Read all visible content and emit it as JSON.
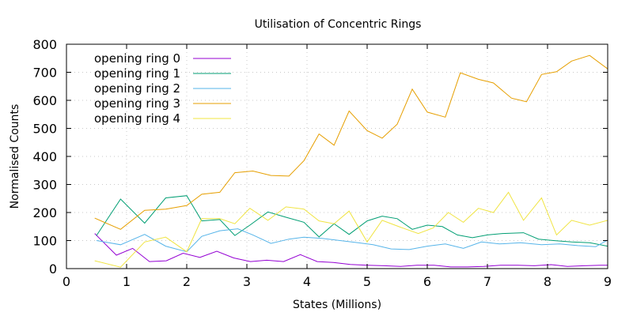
{
  "chart_data": {
    "type": "line",
    "title": "Utilisation of Concentric Rings",
    "xlabel": "States (Millions)",
    "ylabel": "Normalised Counts",
    "xlim": [
      0,
      9
    ],
    "ylim": [
      0,
      800
    ],
    "xticks": [
      0,
      1,
      2,
      3,
      4,
      5,
      6,
      7,
      8,
      9
    ],
    "yticks": [
      0,
      100,
      200,
      300,
      400,
      500,
      600,
      700,
      800
    ],
    "grid": true,
    "legend_position": "top-left",
    "series": [
      {
        "name": "opening ring 0",
        "color": "#9400d3",
        "x": [
          0.47,
          0.83,
          1.1,
          1.38,
          1.66,
          1.94,
          2.22,
          2.5,
          2.78,
          3.06,
          3.33,
          3.61,
          3.89,
          4.17,
          4.44,
          4.72,
          5.0,
          5.28,
          5.56,
          5.83,
          6.11,
          6.39,
          6.67,
          6.94,
          7.22,
          7.5,
          7.78,
          8.06,
          8.33,
          8.61,
          8.89,
          9.0
        ],
        "y": [
          125,
          48,
          72,
          25,
          28,
          55,
          40,
          62,
          38,
          25,
          30,
          25,
          50,
          25,
          22,
          15,
          12,
          10,
          8,
          12,
          12,
          6,
          6,
          8,
          12,
          12,
          10,
          14,
          8,
          10,
          12,
          12
        ]
      },
      {
        "name": "opening ring 1",
        "color": "#009e73",
        "x": [
          0.5,
          0.9,
          1.3,
          1.65,
          2.0,
          2.25,
          2.55,
          2.8,
          3.05,
          3.35,
          3.65,
          3.95,
          4.2,
          4.45,
          4.7,
          5.0,
          5.25,
          5.5,
          5.75,
          6.0,
          6.25,
          6.5,
          6.75,
          7.0,
          7.25,
          7.6,
          7.85,
          8.1,
          8.4,
          8.7,
          9.0
        ],
        "y": [
          118,
          248,
          162,
          252,
          260,
          170,
          175,
          118,
          155,
          202,
          183,
          165,
          113,
          160,
          122,
          170,
          187,
          178,
          140,
          155,
          150,
          120,
          110,
          120,
          125,
          128,
          105,
          100,
          95,
          92,
          80
        ]
      },
      {
        "name": "opening ring 2",
        "color": "#56b4e9",
        "x": [
          0.5,
          0.9,
          1.3,
          1.65,
          2.0,
          2.25,
          2.55,
          2.85,
          3.1,
          3.4,
          3.7,
          3.95,
          4.25,
          4.55,
          4.85,
          5.1,
          5.4,
          5.7,
          6.0,
          6.3,
          6.6,
          6.9,
          7.2,
          7.55,
          7.9,
          8.2,
          8.5,
          8.8,
          9.0
        ],
        "y": [
          100,
          85,
          122,
          80,
          60,
          115,
          135,
          142,
          120,
          90,
          105,
          112,
          108,
          100,
          92,
          85,
          70,
          68,
          80,
          88,
          72,
          95,
          88,
          92,
          85,
          88,
          82,
          78,
          102
        ]
      },
      {
        "name": "opening ring 3",
        "color": "#e69f00",
        "x": [
          0.47,
          0.9,
          1.3,
          1.65,
          2.0,
          2.25,
          2.55,
          2.8,
          3.1,
          3.4,
          3.7,
          3.95,
          4.2,
          4.45,
          4.7,
          5.0,
          5.25,
          5.5,
          5.75,
          6.0,
          6.3,
          6.55,
          6.85,
          7.1,
          7.4,
          7.65,
          7.9,
          8.15,
          8.4,
          8.7,
          9.0
        ],
        "y": [
          180,
          140,
          208,
          212,
          225,
          265,
          272,
          342,
          348,
          332,
          330,
          385,
          480,
          440,
          562,
          492,
          465,
          515,
          640,
          558,
          540,
          698,
          675,
          662,
          608,
          595,
          692,
          702,
          740,
          760,
          712
        ]
      },
      {
        "name": "opening ring 4",
        "color": "#f0e442",
        "x": [
          0.47,
          0.9,
          1.3,
          1.65,
          2.0,
          2.25,
          2.55,
          2.8,
          3.05,
          3.35,
          3.65,
          3.95,
          4.2,
          4.45,
          4.7,
          5.0,
          5.25,
          5.55,
          5.85,
          6.1,
          6.35,
          6.6,
          6.85,
          7.1,
          7.35,
          7.6,
          7.9,
          8.15,
          8.4,
          8.7,
          9.0
        ],
        "y": [
          28,
          5,
          95,
          112,
          60,
          178,
          178,
          160,
          215,
          172,
          220,
          212,
          170,
          160,
          205,
          95,
          172,
          148,
          125,
          145,
          200,
          165,
          215,
          200,
          272,
          172,
          252,
          120,
          172,
          155,
          172
        ]
      }
    ]
  }
}
